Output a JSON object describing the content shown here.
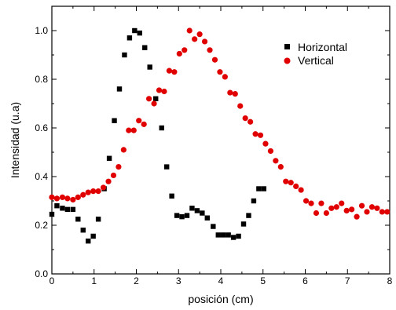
{
  "chart_data": {
    "type": "scatter",
    "title": "",
    "xlabel": "posición (cm)",
    "ylabel": "Intensidad (u.a)",
    "xlim": [
      0,
      8
    ],
    "ylim": [
      0,
      1.1
    ],
    "xticks": [
      0,
      1,
      2,
      3,
      4,
      5,
      6,
      7,
      8
    ],
    "yticks": [
      0.0,
      0.2,
      0.4,
      0.6,
      0.8,
      1.0
    ],
    "xtick_labels": [
      "0",
      "1",
      "2",
      "3",
      "4",
      "5",
      "6",
      "7",
      "8"
    ],
    "ytick_labels": [
      "0.0",
      "0.2",
      "0.4",
      "0.6",
      "0.8",
      "1.0"
    ],
    "grid": false,
    "legend_position": "top-right",
    "series": [
      {
        "name": "Horizontal",
        "color": "#000000",
        "marker": "square",
        "x": [
          0.0,
          0.12,
          0.25,
          0.37,
          0.5,
          0.62,
          0.74,
          0.86,
          0.98,
          1.1,
          1.24,
          1.36,
          1.48,
          1.6,
          1.72,
          1.84,
          1.96,
          2.08,
          2.2,
          2.32,
          2.46,
          2.6,
          2.72,
          2.84,
          2.96,
          3.08,
          3.2,
          3.32,
          3.44,
          3.56,
          3.68,
          3.82,
          3.94,
          4.06,
          4.18,
          4.3,
          4.42,
          4.54,
          4.66,
          4.78,
          4.9,
          5.02
        ],
        "y": [
          0.245,
          0.28,
          0.27,
          0.265,
          0.265,
          0.225,
          0.18,
          0.135,
          0.155,
          0.225,
          0.35,
          0.475,
          0.63,
          0.76,
          0.9,
          0.97,
          1.0,
          0.99,
          0.93,
          0.85,
          0.72,
          0.6,
          0.44,
          0.32,
          0.24,
          0.235,
          0.24,
          0.27,
          0.26,
          0.25,
          0.23,
          0.195,
          0.16,
          0.16,
          0.16,
          0.15,
          0.155,
          0.205,
          0.24,
          0.3,
          0.35,
          0.35
        ]
      },
      {
        "name": "Vertical",
        "color": "#e00000",
        "marker": "circle",
        "x": [
          0.0,
          0.12,
          0.25,
          0.37,
          0.5,
          0.62,
          0.74,
          0.86,
          0.98,
          1.1,
          1.22,
          1.34,
          1.46,
          1.58,
          1.7,
          1.82,
          1.94,
          2.06,
          2.18,
          2.3,
          2.42,
          2.54,
          2.66,
          2.78,
          2.9,
          3.02,
          3.14,
          3.26,
          3.38,
          3.5,
          3.62,
          3.74,
          3.86,
          3.98,
          4.1,
          4.22,
          4.34,
          4.46,
          4.58,
          4.7,
          4.82,
          4.94,
          5.06,
          5.18,
          5.3,
          5.42,
          5.54,
          5.66,
          5.78,
          5.9,
          6.02,
          6.14,
          6.26,
          6.38,
          6.5,
          6.62,
          6.74,
          6.86,
          6.98,
          7.1,
          7.22,
          7.34,
          7.46,
          7.58,
          7.7,
          7.82,
          7.94
        ],
        "y": [
          0.315,
          0.31,
          0.315,
          0.31,
          0.305,
          0.315,
          0.325,
          0.335,
          0.34,
          0.34,
          0.355,
          0.38,
          0.405,
          0.44,
          0.51,
          0.59,
          0.59,
          0.63,
          0.615,
          0.72,
          0.7,
          0.755,
          0.75,
          0.835,
          0.83,
          0.905,
          0.92,
          1.0,
          0.965,
          0.985,
          0.955,
          0.92,
          0.88,
          0.83,
          0.81,
          0.745,
          0.74,
          0.69,
          0.64,
          0.625,
          0.575,
          0.57,
          0.535,
          0.505,
          0.465,
          0.44,
          0.38,
          0.375,
          0.36,
          0.345,
          0.3,
          0.29,
          0.25,
          0.29,
          0.25,
          0.27,
          0.275,
          0.29,
          0.26,
          0.265,
          0.235,
          0.28,
          0.255,
          0.275,
          0.27,
          0.255,
          0.255
        ]
      }
    ]
  }
}
